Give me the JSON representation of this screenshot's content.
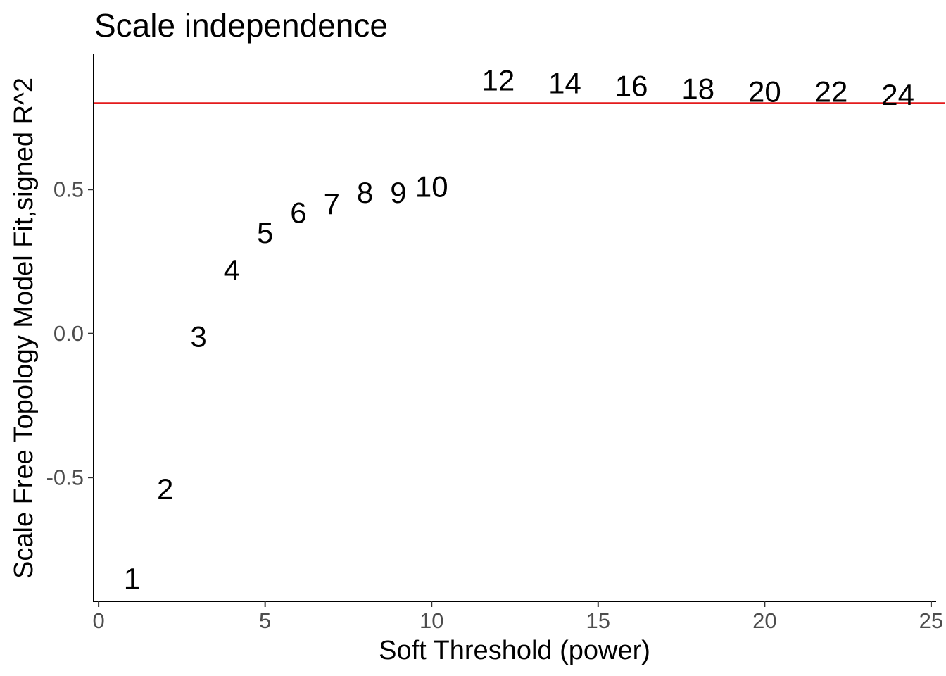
{
  "chart_data": {
    "type": "scatter",
    "title": "Scale independence",
    "xlabel": "Soft Threshold (power)",
    "ylabel": "Scale Free Topology Model Fit,signed R^2",
    "xlim": [
      -0.15,
      25.15
    ],
    "ylim": [
      -0.93,
      0.97
    ],
    "x_ticks": [
      0,
      5,
      10,
      15,
      20,
      25
    ],
    "x_tick_labels": [
      "0",
      "5",
      "10",
      "15",
      "20",
      "25"
    ],
    "y_ticks": [
      -0.5,
      0.0,
      0.5
    ],
    "y_tick_labels": [
      "-0.5",
      "0.0",
      "0.5"
    ],
    "grid": false,
    "points": [
      {
        "x": 1,
        "y": -0.85,
        "label": "1"
      },
      {
        "x": 2,
        "y": -0.54,
        "label": "2"
      },
      {
        "x": 3,
        "y": -0.01,
        "label": "3"
      },
      {
        "x": 4,
        "y": 0.22,
        "label": "4"
      },
      {
        "x": 5,
        "y": 0.35,
        "label": "5"
      },
      {
        "x": 6,
        "y": 0.42,
        "label": "6"
      },
      {
        "x": 7,
        "y": 0.45,
        "label": "7"
      },
      {
        "x": 8,
        "y": 0.49,
        "label": "8"
      },
      {
        "x": 9,
        "y": 0.49,
        "label": "9"
      },
      {
        "x": 10,
        "y": 0.51,
        "label": "10"
      },
      {
        "x": 12,
        "y": 0.88,
        "label": "12"
      },
      {
        "x": 14,
        "y": 0.87,
        "label": "14"
      },
      {
        "x": 16,
        "y": 0.86,
        "label": "16"
      },
      {
        "x": 18,
        "y": 0.85,
        "label": "18"
      },
      {
        "x": 20,
        "y": 0.84,
        "label": "20"
      },
      {
        "x": 22,
        "y": 0.84,
        "label": "22"
      },
      {
        "x": 24,
        "y": 0.83,
        "label": "24"
      }
    ],
    "reference_line": {
      "y": 0.8,
      "color": "#e41a1c"
    },
    "colors": {
      "text": "#000000",
      "tick_text": "#4d4d4d",
      "axis": "#000000"
    }
  }
}
